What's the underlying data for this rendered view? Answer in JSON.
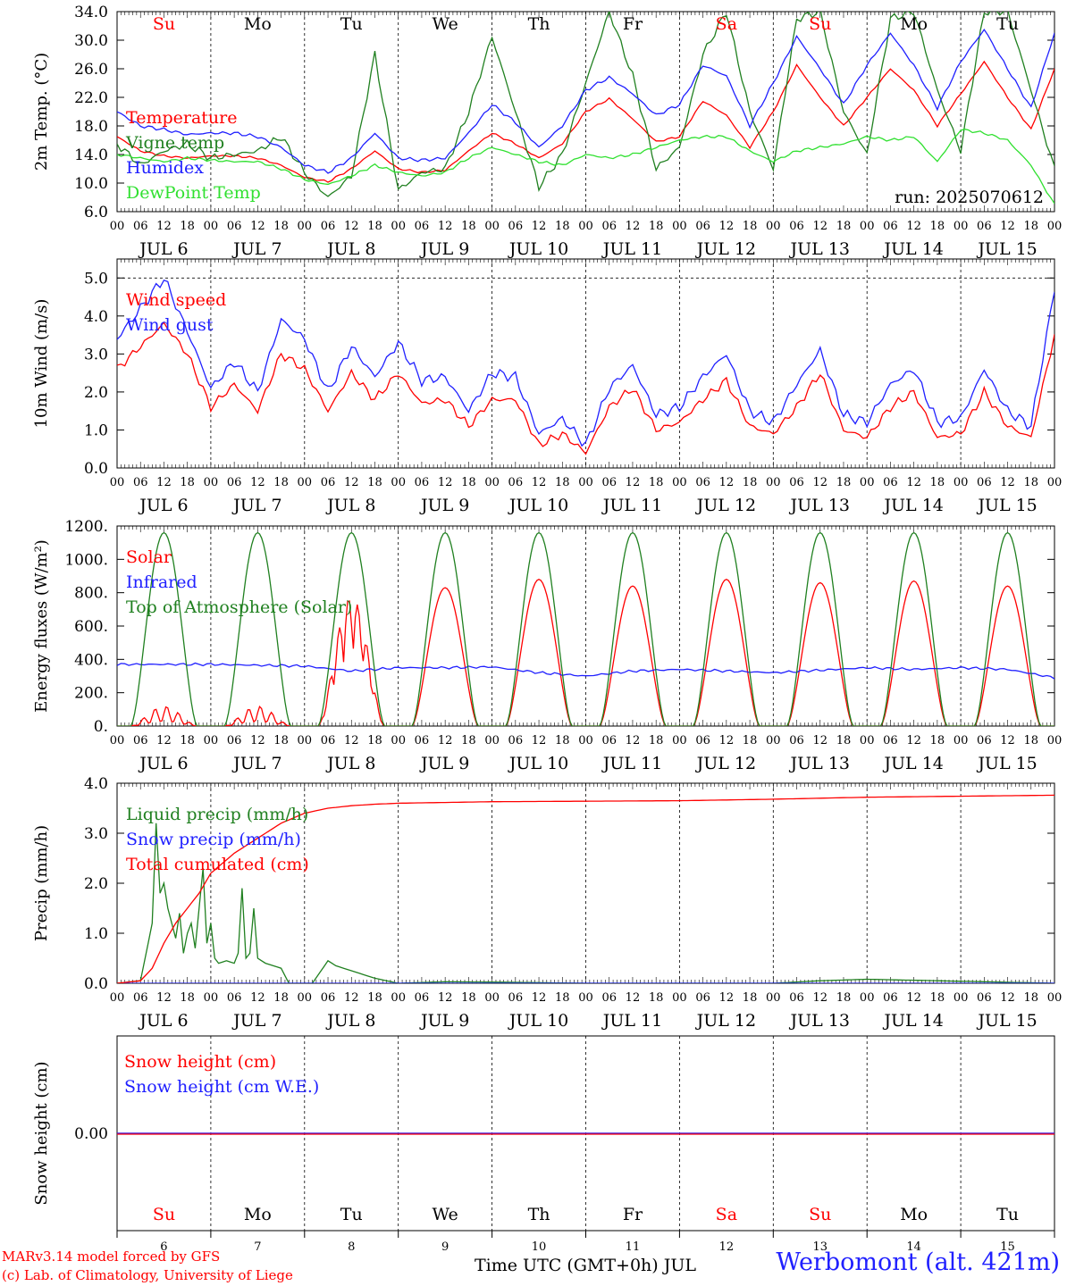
{
  "run_label": "run: 2025070612",
  "footer": {
    "model_line": "MARv3.14 model forced by GFS",
    "copyright_line": "(c) Lab. of Climatology, University of Liege",
    "time_axis_title": "Time UTC (GMT+0h) JUL",
    "station": "Werbomont (alt. 421m)"
  },
  "colors": {
    "red": "#ff0000",
    "blue": "#2020ff",
    "darkgreen": "#208020",
    "green": "#30e030",
    "black": "#000000"
  },
  "days": {
    "weekday": [
      "Su",
      "Mo",
      "Tu",
      "We",
      "Th",
      "Fr",
      "Sa",
      "Su",
      "Mo",
      "Tu"
    ],
    "weekend": [
      true,
      false,
      false,
      false,
      false,
      false,
      true,
      true,
      false,
      false
    ],
    "date_label": [
      "JUL  6",
      "JUL  7",
      "JUL  8",
      "JUL  9",
      "JUL 10",
      "JUL 11",
      "JUL 12",
      "JUL 13",
      "JUL 14",
      "JUL 15"
    ],
    "day_number": [
      "6",
      "7",
      "8",
      "9",
      "10",
      "11",
      "12",
      "13",
      "14",
      "15"
    ],
    "hour_ticks": [
      "00",
      "06",
      "12",
      "18"
    ],
    "end_tick": "00"
  },
  "chart_data": [
    {
      "type": "line",
      "ylabel": "2m Temp. (°C)",
      "ylim": [
        6.0,
        34.0
      ],
      "yticks": [
        "6.0",
        "10.0",
        "14.0",
        "18.0",
        "22.0",
        "26.0",
        "30.0",
        "34.0"
      ],
      "x_unit": "hours since JUL 6 00 UTC",
      "x_range": [
        0,
        240
      ],
      "series": [
        {
          "name": "Temperature",
          "color": "red",
          "x": [
            0,
            6,
            12,
            18,
            24,
            30,
            36,
            42,
            48,
            54,
            60,
            66,
            72,
            78,
            84,
            90,
            96,
            102,
            108,
            114,
            120,
            126,
            132,
            138,
            144,
            150,
            156,
            162,
            168,
            174,
            180,
            186,
            192,
            198,
            204,
            210,
            216,
            222,
            228,
            234,
            240
          ],
          "y": [
            16.5,
            14.5,
            13.8,
            13.5,
            13.8,
            13.8,
            13.5,
            12.5,
            10.8,
            10.2,
            12.0,
            14.5,
            12.0,
            11.5,
            11.8,
            14.5,
            17.0,
            15.5,
            13.5,
            15.5,
            20.0,
            21.8,
            19.0,
            15.8,
            16.5,
            21.5,
            19.5,
            15.0,
            20.0,
            26.5,
            22.0,
            18.0,
            22.0,
            26.0,
            23.0,
            18.0,
            22.5,
            27.0,
            22.0,
            17.5,
            26.0
          ]
        },
        {
          "name": "Vigne temp",
          "color": "darkgreen",
          "x": [
            0,
            6,
            12,
            18,
            24,
            30,
            36,
            42,
            48,
            54,
            60,
            66,
            72,
            78,
            84,
            90,
            96,
            102,
            108,
            114,
            120,
            126,
            132,
            138,
            144,
            150,
            156,
            162,
            168,
            174,
            180,
            186,
            192,
            198,
            204,
            210,
            216,
            222,
            228,
            234,
            240
          ],
          "y": [
            15.5,
            12.5,
            14.5,
            15.5,
            13.5,
            14.0,
            14.5,
            16.5,
            11.5,
            8.0,
            11.0,
            28.0,
            9.0,
            11.5,
            12.0,
            20.0,
            30.5,
            20.0,
            9.5,
            14.0,
            24.0,
            34.0,
            25.0,
            12.0,
            15.0,
            28.0,
            34.0,
            20.0,
            12.0,
            33.0,
            34.0,
            20.0,
            14.0,
            33.0,
            34.0,
            23.0,
            14.5,
            34.0,
            34.0,
            23.0,
            12.0
          ]
        },
        {
          "name": "Humidex",
          "color": "blue",
          "x": [
            0,
            6,
            12,
            18,
            24,
            30,
            36,
            42,
            48,
            54,
            60,
            66,
            72,
            78,
            84,
            90,
            96,
            102,
            108,
            114,
            120,
            126,
            132,
            138,
            144,
            150,
            156,
            162,
            168,
            174,
            180,
            186,
            192,
            198,
            204,
            210,
            216,
            222,
            228,
            234,
            240
          ],
          "y": [
            20.0,
            18.0,
            17.5,
            16.8,
            17.0,
            17.0,
            16.5,
            15.0,
            12.5,
            11.5,
            13.5,
            17.0,
            13.5,
            13.2,
            13.5,
            17.0,
            21.0,
            18.5,
            15.0,
            18.0,
            23.0,
            24.8,
            22.5,
            19.5,
            21.0,
            26.5,
            25.0,
            18.0,
            24.0,
            30.5,
            26.0,
            21.0,
            26.5,
            31.0,
            26.5,
            20.5,
            27.0,
            31.5,
            26.0,
            20.5,
            31.0
          ]
        },
        {
          "name": "DewPoint Temp",
          "color": "green",
          "x": [
            0,
            6,
            12,
            18,
            24,
            30,
            36,
            42,
            48,
            54,
            60,
            66,
            72,
            78,
            84,
            90,
            96,
            102,
            108,
            114,
            120,
            126,
            132,
            138,
            144,
            150,
            156,
            162,
            168,
            174,
            180,
            186,
            192,
            198,
            204,
            210,
            216,
            222,
            228,
            234,
            240
          ],
          "y": [
            14.0,
            13.5,
            13.0,
            13.5,
            13.2,
            13.0,
            13.0,
            12.0,
            10.5,
            9.8,
            11.0,
            12.5,
            11.5,
            11.0,
            11.5,
            13.5,
            15.0,
            14.0,
            13.0,
            12.5,
            14.0,
            13.5,
            14.0,
            15.0,
            16.0,
            16.5,
            16.5,
            14.5,
            13.0,
            14.5,
            15.0,
            15.5,
            16.5,
            16.0,
            16.5,
            13.0,
            17.5,
            17.0,
            16.0,
            12.5,
            7.0
          ]
        }
      ]
    },
    {
      "type": "line",
      "ylabel": "10m Wind (m/s)",
      "ylim": [
        0.0,
        5.5
      ],
      "yticks": [
        "0.0",
        "1.0",
        "2.0",
        "3.0",
        "4.0",
        "5.0"
      ],
      "x_range": [
        0,
        240
      ],
      "series": [
        {
          "name": "Wind speed",
          "color": "red",
          "x": [
            0,
            6,
            12,
            18,
            24,
            30,
            36,
            42,
            48,
            54,
            60,
            66,
            72,
            78,
            84,
            90,
            96,
            102,
            108,
            114,
            120,
            126,
            132,
            138,
            144,
            150,
            156,
            162,
            168,
            174,
            180,
            186,
            192,
            198,
            204,
            210,
            216,
            222,
            228,
            234,
            240
          ],
          "y": [
            2.6,
            3.2,
            3.8,
            3.0,
            1.6,
            2.2,
            1.5,
            3.0,
            2.6,
            1.5,
            2.5,
            1.8,
            2.5,
            1.7,
            1.8,
            1.1,
            1.8,
            1.8,
            0.6,
            0.9,
            0.4,
            1.6,
            2.1,
            1.0,
            1.2,
            1.8,
            2.3,
            1.1,
            0.9,
            1.6,
            2.5,
            1.0,
            0.8,
            1.6,
            2.0,
            0.8,
            0.9,
            2.0,
            1.1,
            0.8,
            3.5
          ]
        },
        {
          "name": "Wind gust",
          "color": "blue",
          "x": [
            0,
            6,
            12,
            18,
            24,
            30,
            36,
            42,
            48,
            54,
            60,
            66,
            72,
            78,
            84,
            90,
            96,
            102,
            108,
            114,
            120,
            126,
            132,
            138,
            144,
            150,
            156,
            162,
            168,
            174,
            180,
            186,
            192,
            198,
            204,
            210,
            216,
            222,
            228,
            234,
            240
          ],
          "y": [
            3.4,
            4.2,
            5.0,
            3.6,
            2.1,
            2.8,
            2.0,
            3.9,
            3.4,
            2.0,
            3.2,
            2.4,
            3.3,
            2.3,
            2.4,
            1.5,
            2.5,
            2.4,
            0.9,
            1.3,
            0.6,
            2.1,
            2.7,
            1.4,
            1.6,
            2.4,
            3.0,
            1.5,
            1.2,
            2.2,
            3.1,
            1.4,
            1.2,
            2.2,
            2.6,
            1.2,
            1.3,
            2.6,
            1.5,
            1.1,
            4.7
          ]
        }
      ]
    },
    {
      "type": "line",
      "ylabel": "Energy fluxes (W/m²)",
      "ylim": [
        0,
        1200
      ],
      "yticks": [
        "0.",
        "200.",
        "400.",
        "600.",
        "800.",
        "1000.",
        "1200."
      ],
      "x_range": [
        0,
        240
      ],
      "series": [
        {
          "name": "Solar",
          "color": "red",
          "daily_peak": [
            120,
            120,
            780,
            830,
            880,
            840,
            880,
            860,
            870,
            840
          ]
        },
        {
          "name": "Infrared",
          "color": "blue",
          "x": [
            0,
            24,
            48,
            60,
            72,
            84,
            96,
            108,
            120,
            132,
            144,
            156,
            168,
            180,
            192,
            204,
            216,
            228,
            240
          ],
          "y": [
            370,
            370,
            360,
            330,
            350,
            350,
            355,
            320,
            300,
            330,
            340,
            330,
            320,
            335,
            350,
            340,
            350,
            340,
            290
          ]
        },
        {
          "name": "Top of Atmosphere (Solar)",
          "color": "darkgreen",
          "daily_peak": [
            1160,
            1160,
            1160,
            1160,
            1160,
            1160,
            1160,
            1160,
            1160,
            1160
          ]
        }
      ]
    },
    {
      "type": "line",
      "ylabel": "Precip (mm/h)",
      "ylim": [
        0.0,
        4.0
      ],
      "yticks": [
        "0.0",
        "1.0",
        "2.0",
        "3.0",
        "4.0"
      ],
      "x_range": [
        0,
        240
      ],
      "series": [
        {
          "name": "Liquid precip (mm/h)",
          "color": "darkgreen",
          "x": [
            0,
            6,
            9,
            10,
            11,
            12,
            13,
            15,
            16,
            17,
            18,
            19,
            20,
            21,
            22,
            23,
            24,
            25,
            26,
            28,
            30,
            31,
            32,
            33,
            34,
            35,
            36,
            38,
            42,
            44,
            48,
            50,
            54,
            56,
            58,
            60,
            66,
            72,
            84,
            100,
            120,
            168,
            180,
            192,
            240
          ],
          "y": [
            0.0,
            0.05,
            1.2,
            3.2,
            1.8,
            2.0,
            1.5,
            0.9,
            1.4,
            0.6,
            1.0,
            1.2,
            0.7,
            1.5,
            2.3,
            0.8,
            1.2,
            0.5,
            0.4,
            0.45,
            0.4,
            0.6,
            1.9,
            0.5,
            0.6,
            1.5,
            0.5,
            0.4,
            0.3,
            0.0,
            0.0,
            0.0,
            0.45,
            0.35,
            0.3,
            0.25,
            0.1,
            0.0,
            0.03,
            0.02,
            0.0,
            0.0,
            0.05,
            0.08,
            0.0
          ]
        },
        {
          "name": "Snow precip (mm/h)",
          "color": "blue",
          "x": [
            0,
            240
          ],
          "y": [
            0.0,
            0.0
          ]
        },
        {
          "name": "Total cumulated (cm)",
          "color": "red",
          "x": [
            0,
            6,
            9,
            12,
            15,
            18,
            21,
            24,
            30,
            36,
            42,
            48,
            54,
            60,
            66,
            72,
            96,
            120,
            144,
            168,
            192,
            216,
            240
          ],
          "y": [
            0.0,
            0.05,
            0.3,
            0.8,
            1.2,
            1.5,
            1.8,
            2.2,
            2.6,
            2.9,
            3.2,
            3.4,
            3.5,
            3.55,
            3.58,
            3.6,
            3.63,
            3.64,
            3.65,
            3.68,
            3.72,
            3.74,
            3.76
          ]
        }
      ]
    },
    {
      "type": "line",
      "ylabel": "Snow height (cm)",
      "yticks": [
        "0.00"
      ],
      "x_range": [
        0,
        240
      ],
      "series": [
        {
          "name": "Snow height (cm)",
          "color": "red",
          "x": [
            0,
            240
          ],
          "y": [
            0.0,
            0.0
          ]
        },
        {
          "name": "Snow height (cm W.E.)",
          "color": "blue",
          "x": [
            0,
            240
          ],
          "y": [
            0.0,
            0.0
          ]
        }
      ]
    }
  ]
}
